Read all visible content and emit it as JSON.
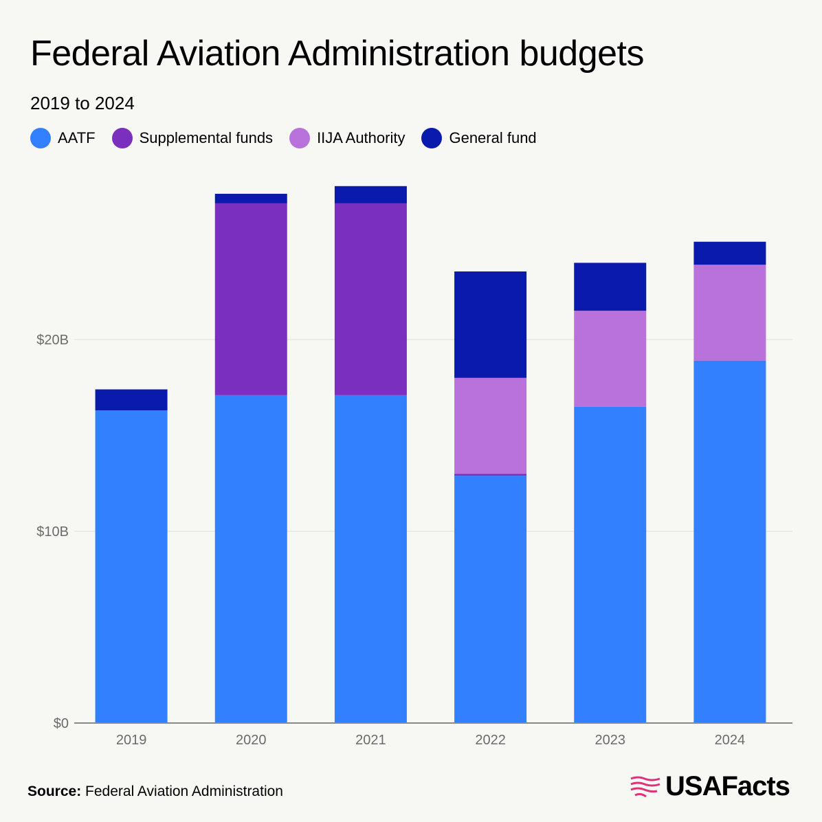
{
  "title": "Federal Aviation Administration budgets",
  "subtitle": "2019 to 2024",
  "source_label": "Source:",
  "source_text": "Federal Aviation Administration",
  "logo_text": "USAFacts",
  "chart_data": {
    "type": "bar",
    "stacked": true,
    "categories": [
      "2019",
      "2020",
      "2021",
      "2022",
      "2023",
      "2024"
    ],
    "series": [
      {
        "name": "AATF",
        "color": "#3380ff",
        "values": [
          16.3,
          17.1,
          17.1,
          12.9,
          16.5,
          18.9
        ]
      },
      {
        "name": "Supplemental funds",
        "color": "#7b2fbf",
        "values": [
          0,
          10.0,
          10.0,
          0.1,
          0,
          0
        ]
      },
      {
        "name": "IIJA Authority",
        "color": "#b972dc",
        "values": [
          0,
          0,
          0,
          5.0,
          5.0,
          5.0
        ]
      },
      {
        "name": "General fund",
        "color": "#0a1aad",
        "values": [
          1.1,
          0.5,
          0.9,
          5.55,
          2.5,
          1.2
        ]
      }
    ],
    "yticks": [
      {
        "value": 0,
        "label": "$0"
      },
      {
        "value": 10,
        "label": "$10B"
      },
      {
        "value": 20,
        "label": "$20B"
      }
    ],
    "ylim": [
      0,
      30
    ],
    "grid": true,
    "legend_position": "top-left"
  }
}
